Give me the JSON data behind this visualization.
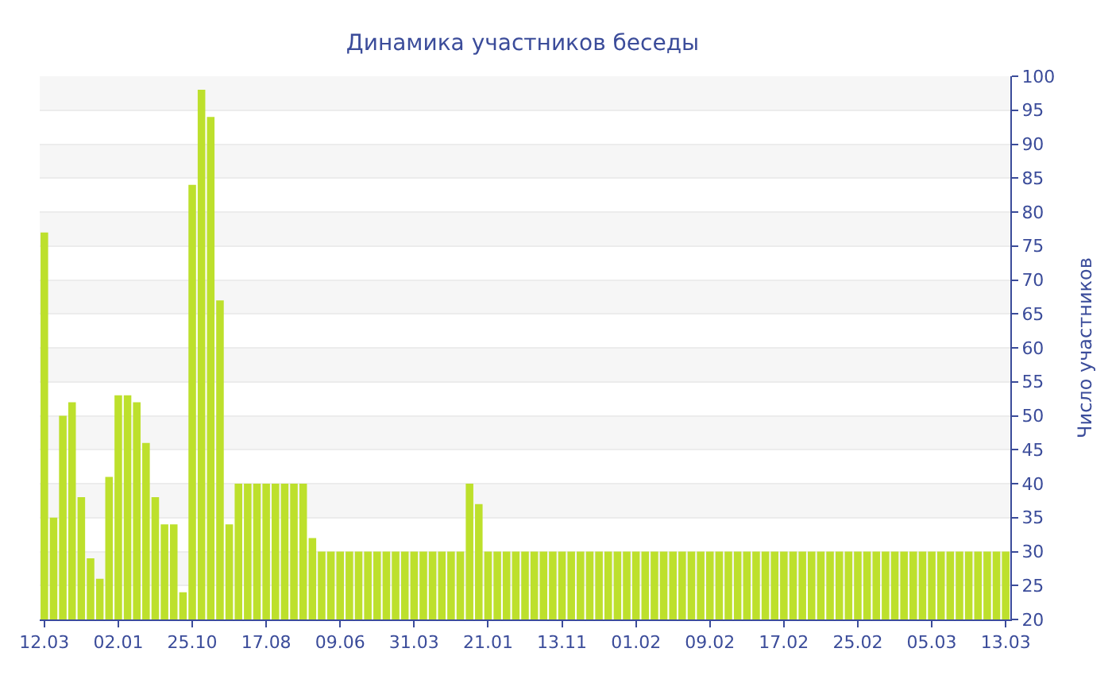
{
  "chart_data": {
    "type": "bar",
    "title": "Динамика участников беседы",
    "ylabel": "Число участников",
    "categories": [
      "12.03",
      null,
      null,
      null,
      null,
      null,
      null,
      null,
      "02.01",
      null,
      null,
      null,
      null,
      null,
      null,
      null,
      "25.10",
      null,
      null,
      null,
      null,
      null,
      null,
      null,
      "17.08",
      null,
      null,
      null,
      null,
      null,
      null,
      null,
      "09.06",
      null,
      null,
      null,
      null,
      null,
      null,
      null,
      "31.03",
      null,
      null,
      null,
      null,
      null,
      null,
      null,
      "21.01",
      null,
      null,
      null,
      null,
      null,
      null,
      null,
      "13.11",
      null,
      null,
      null,
      null,
      null,
      null,
      null,
      "01.02",
      null,
      null,
      null,
      null,
      null,
      null,
      null,
      "09.02",
      null,
      null,
      null,
      null,
      null,
      null,
      null,
      "17.02",
      null,
      null,
      null,
      null,
      null,
      null,
      null,
      "25.02",
      null,
      null,
      null,
      null,
      null,
      null,
      null,
      "05.03",
      null,
      null,
      null,
      null,
      null,
      null,
      null,
      "13.03"
    ],
    "values": [
      77,
      35,
      50,
      52,
      38,
      29,
      26,
      41,
      53,
      53,
      52,
      46,
      38,
      34,
      34,
      24,
      84,
      98,
      94,
      67,
      34,
      40,
      40,
      40,
      40,
      40,
      40,
      40,
      40,
      32,
      30,
      30,
      30,
      30,
      30,
      30,
      30,
      30,
      30,
      30,
      30,
      30,
      30,
      30,
      30,
      30,
      40,
      37,
      30,
      30,
      30,
      30,
      30,
      30,
      30,
      30,
      30,
      30,
      30,
      30,
      30,
      30,
      30,
      30,
      30,
      30,
      30,
      30,
      30,
      30,
      30,
      30,
      30,
      30,
      30,
      30,
      30,
      30,
      30,
      30,
      30,
      30,
      30,
      30,
      30,
      30,
      30,
      30,
      30,
      30,
      30,
      30,
      30,
      30,
      30,
      30,
      30,
      30,
      30,
      30,
      30,
      30,
      30,
      30,
      30
    ],
    "color": "#bde02c",
    "ylim": [
      20,
      100
    ],
    "yticks": [
      20,
      25,
      30,
      35,
      40,
      45,
      50,
      55,
      60,
      65,
      70,
      75,
      80,
      85,
      90,
      95,
      100
    ],
    "grid": true
  }
}
